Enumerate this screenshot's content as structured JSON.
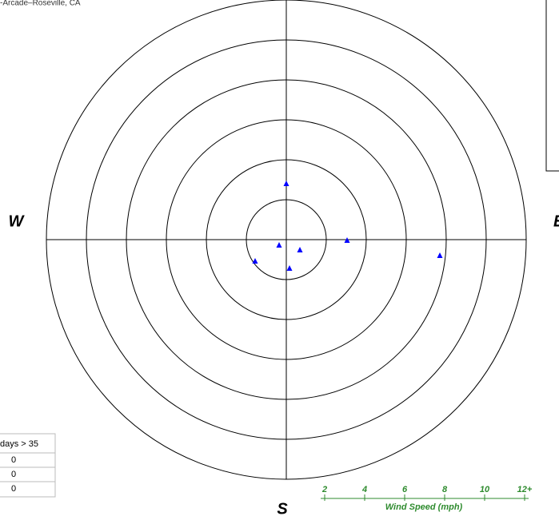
{
  "chart_data": {
    "type": "scatter",
    "title": "-Arcade–Roseville, CA",
    "x": [
      0,
      -0.36,
      0.68,
      0.16,
      -1.56,
      3.04,
      7.68
    ],
    "y": [
      2.8,
      -0.28,
      -0.52,
      -1.44,
      -1.08,
      -0.04,
      -0.8
    ],
    "color": "#0000ff",
    "rlim": [
      0,
      12
    ],
    "rticks": [
      2,
      4,
      6,
      8,
      10,
      {
        "value": 12,
        "label": "12+"
      }
    ],
    "axis_label": "Wind Speed (mph)",
    "compass": {
      "west": "W",
      "east": "E",
      "south": "S"
    }
  },
  "table": {
    "header": "days > 35",
    "rows": [
      "0",
      "0",
      "0"
    ]
  }
}
